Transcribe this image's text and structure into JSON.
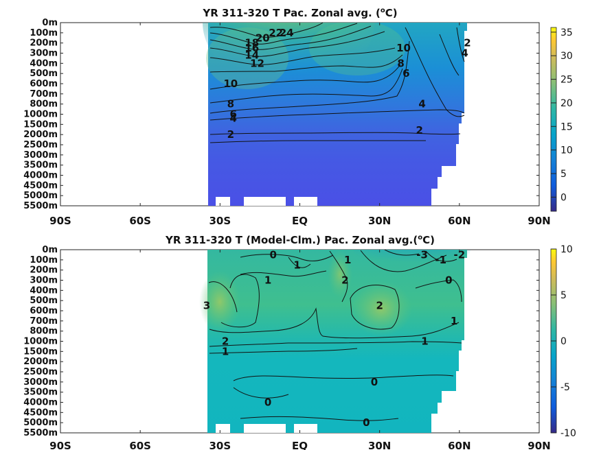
{
  "chart_data": [
    {
      "type": "heatmap",
      "title": "YR 311-320 T Pac. Zonal avg. (°C)",
      "title_parts": [
        "YR 311-320 T Pac. Zonal avg. (",
        "o",
        "C)"
      ],
      "x_ticks": [
        "90S",
        "60S",
        "30S",
        "EQ",
        "30N",
        "60N",
        "90N"
      ],
      "x_tick_values": [
        -90,
        -60,
        -30,
        0,
        30,
        60,
        90
      ],
      "y_ticks": [
        "0m",
        "100m",
        "200m",
        "300m",
        "400m",
        "500m",
        "600m",
        "700m",
        "800m",
        "1000m",
        "1500m",
        "2000m",
        "2500m",
        "3000m",
        "3500m",
        "4000m",
        "4500m",
        "5000m",
        "5500m"
      ],
      "xlim": [
        -90,
        90
      ],
      "colorbar": {
        "ticks": [
          0,
          5,
          10,
          15,
          20,
          25,
          30,
          35
        ],
        "range": [
          -3,
          36
        ]
      },
      "contour_labels": [
        {
          "text": "24",
          "lat": -5,
          "depth": "100m"
        },
        {
          "text": "22",
          "lat": -9,
          "depth": "100m"
        },
        {
          "text": "20",
          "lat": -14,
          "depth": "150m"
        },
        {
          "text": "18",
          "lat": -18,
          "depth": "200m"
        },
        {
          "text": "16",
          "lat": -18,
          "depth": "250m"
        },
        {
          "text": "14",
          "lat": -18,
          "depth": "320m"
        },
        {
          "text": "12",
          "lat": -16,
          "depth": "400m"
        },
        {
          "text": "10",
          "lat": -26,
          "depth": "600m"
        },
        {
          "text": "8",
          "lat": -26,
          "depth": "800m"
        },
        {
          "text": "6",
          "lat": -25,
          "depth": "1000m"
        },
        {
          "text": "4",
          "lat": -25,
          "depth": "1200m"
        },
        {
          "text": "2",
          "lat": -26,
          "depth": "2000m"
        },
        {
          "text": "2",
          "lat": 45,
          "depth": "1800m"
        },
        {
          "text": "4",
          "lat": 46,
          "depth": "800m"
        },
        {
          "text": "6",
          "lat": 40,
          "depth": "500m"
        },
        {
          "text": "8",
          "lat": 38,
          "depth": "400m"
        },
        {
          "text": "10",
          "lat": 39,
          "depth": "250m"
        },
        {
          "text": "2",
          "lat": 63,
          "depth": "200m"
        },
        {
          "text": "4",
          "lat": 62,
          "depth": "300m"
        }
      ]
    },
    {
      "type": "heatmap",
      "title": "YR 311-320 T (Model-Clm.) Pac. Zonal avg.(°C)",
      "title_parts": [
        "YR 311-320 T (Model-Clm.) Pac. Zonal avg.(",
        "o",
        "C)"
      ],
      "x_ticks": [
        "90S",
        "60S",
        "30S",
        "EQ",
        "30N",
        "60N",
        "90N"
      ],
      "x_tick_values": [
        -90,
        -60,
        -30,
        0,
        30,
        60,
        90
      ],
      "y_ticks": [
        "0m",
        "100m",
        "200m",
        "300m",
        "400m",
        "500m",
        "600m",
        "700m",
        "800m",
        "1000m",
        "1500m",
        "2000m",
        "2500m",
        "3000m",
        "3500m",
        "4000m",
        "4500m",
        "5000m",
        "5500m"
      ],
      "xlim": [
        -90,
        90
      ],
      "colorbar": {
        "ticks": [
          10,
          5,
          0,
          -5,
          -10
        ],
        "range": [
          -10,
          10
        ]
      },
      "contour_labels": [
        {
          "text": "0",
          "lat": -10,
          "depth": "50m"
        },
        {
          "text": "1",
          "lat": -1,
          "depth": "150m"
        },
        {
          "text": "1",
          "lat": 18,
          "depth": "100m"
        },
        {
          "text": "2",
          "lat": 17,
          "depth": "300m"
        },
        {
          "text": "1",
          "lat": -12,
          "depth": "300m"
        },
        {
          "text": "-3",
          "lat": 46,
          "depth": "50m"
        },
        {
          "text": "-1",
          "lat": 53,
          "depth": "100m"
        },
        {
          "text": "-2",
          "lat": 60,
          "depth": "50m"
        },
        {
          "text": "0",
          "lat": 56,
          "depth": "300m"
        },
        {
          "text": "3",
          "lat": -35,
          "depth": "550m"
        },
        {
          "text": "2",
          "lat": 30,
          "depth": "550m"
        },
        {
          "text": "1",
          "lat": 58,
          "depth": "700m"
        },
        {
          "text": "2",
          "lat": -28,
          "depth": "1000m"
        },
        {
          "text": "1",
          "lat": -28,
          "depth": "1500m"
        },
        {
          "text": "1",
          "lat": 47,
          "depth": "1000m"
        },
        {
          "text": "0",
          "lat": 28,
          "depth": "3000m"
        },
        {
          "text": "0",
          "lat": -12,
          "depth": "4000m"
        },
        {
          "text": "0",
          "lat": 25,
          "depth": "5000m"
        }
      ]
    }
  ]
}
